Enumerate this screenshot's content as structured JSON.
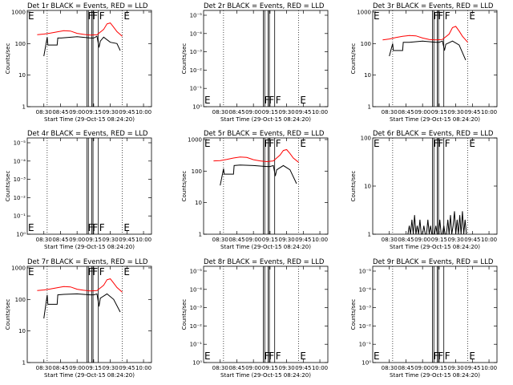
{
  "chart_data": [
    {
      "type": "line",
      "title": "Det 1r BLACK = Events, RED = LLD",
      "scale": "linear-counts",
      "flag_labels": [
        "F",
        "F",
        "F",
        "E"
      ],
      "corner_label": "E",
      "ylabel": "Counts/sec",
      "xlabel": "Start Time (29-Oct-15 08:24:20)",
      "y_ticks": [
        "1",
        "10",
        "100",
        "1000"
      ],
      "x_ticks": [
        "08:30",
        "08:45",
        "09:00",
        "09:15",
        "09:30",
        "09:45",
        "10:00"
      ],
      "series": [
        {
          "color": "#000000",
          "x": [
            8.5,
            8.55,
            8.56,
            8.7,
            8.71,
            8.75,
            8.76,
            9.0,
            9.2,
            9.25,
            9.3,
            9.33,
            9.35,
            9.4,
            9.5,
            9.6,
            9.65
          ],
          "y": [
            40,
            160,
            90,
            90,
            150,
            150,
            150,
            165,
            150,
            150,
            170,
            75,
            120,
            160,
            110,
            100,
            60
          ]
        },
        {
          "color": "#ff0000",
          "x": [
            8.4,
            8.5,
            8.6,
            8.7,
            8.8,
            8.9,
            9.0,
            9.1,
            9.2,
            9.3,
            9.4,
            9.45,
            9.5,
            9.55,
            9.6,
            9.68
          ],
          "y": [
            190,
            200,
            215,
            235,
            255,
            250,
            210,
            195,
            185,
            190,
            280,
            420,
            450,
            330,
            240,
            170
          ]
        }
      ]
    },
    {
      "type": "line",
      "title": "Det 2r BLACK = Events, RED = LLD",
      "scale": "empty",
      "flag_labels": [
        "F",
        "F",
        "F",
        "E"
      ],
      "corner_label": "E",
      "ylabel": "Counts/sec",
      "xlabel": "Start Time (29-Oct-15 08:24:20)",
      "y_ticks": [
        "10⁰",
        "10⁻¹",
        "10⁻²",
        "10⁻³",
        "10⁻⁴",
        "10⁻⁵"
      ],
      "x_ticks": [
        "08:30",
        "08:45",
        "09:00",
        "09:15",
        "09:30",
        "09:45",
        "10:00"
      ],
      "series": []
    },
    {
      "type": "line",
      "title": "Det 3r BLACK = Events, RED = LLD",
      "scale": "linear-counts",
      "flag_labels": [
        "F",
        "F",
        "F",
        "E"
      ],
      "corner_label": "E",
      "ylabel": "Counts/sec",
      "xlabel": "Start Time (29-Oct-15 08:24:20)",
      "y_ticks": [
        "1",
        "10",
        "100",
        "1000"
      ],
      "x_ticks": [
        "08:30",
        "08:45",
        "09:00",
        "09:15",
        "09:30",
        "09:45",
        "10:00"
      ],
      "series": [
        {
          "color": "#000000",
          "x": [
            8.5,
            8.55,
            8.56,
            8.7,
            8.71,
            8.8,
            9.0,
            9.2,
            9.25,
            9.3,
            9.33,
            9.35,
            9.45,
            9.55,
            9.65
          ],
          "y": [
            40,
            100,
            60,
            60,
            110,
            110,
            120,
            110,
            110,
            120,
            60,
            95,
            120,
            90,
            30
          ]
        },
        {
          "color": "#ff0000",
          "x": [
            8.4,
            8.5,
            8.6,
            8.7,
            8.8,
            8.9,
            9.0,
            9.1,
            9.2,
            9.3,
            9.4,
            9.45,
            9.5,
            9.55,
            9.6,
            9.68
          ],
          "y": [
            130,
            140,
            155,
            170,
            180,
            175,
            150,
            135,
            130,
            135,
            200,
            320,
            350,
            250,
            170,
            110
          ]
        }
      ]
    },
    {
      "type": "line",
      "title": "Det 4r BLACK = Events, RED = LLD",
      "scale": "empty",
      "flag_labels": [
        "F",
        "F",
        "F",
        "E"
      ],
      "corner_label": "E",
      "ylabel": "Counts/sec",
      "xlabel": "Start Time (29-Oct-15 08:24:20)",
      "y_ticks": [
        "10⁰",
        "10⁻¹",
        "10⁻²",
        "10⁻³",
        "10⁻⁴",
        "10⁻⁵"
      ],
      "x_ticks": [
        "08:30",
        "08:45",
        "09:00",
        "09:15",
        "09:30",
        "09:45",
        "10:00"
      ],
      "series": []
    },
    {
      "type": "line",
      "title": "Det 5r BLACK = Events, RED = LLD",
      "scale": "linear-counts",
      "flag_labels": [
        "F",
        "F",
        "F",
        "E"
      ],
      "corner_label": "E",
      "ylabel": "Counts/sec",
      "xlabel": "Start Time (29-Oct-15 08:24:20)",
      "y_ticks": [
        "1",
        "10",
        "100",
        "1000"
      ],
      "x_ticks": [
        "08:30",
        "08:45",
        "09:00",
        "09:15",
        "09:30",
        "09:45",
        "10:00"
      ],
      "series": [
        {
          "color": "#000000",
          "x": [
            8.5,
            8.55,
            8.56,
            8.7,
            8.71,
            8.8,
            9.0,
            9.2,
            9.25,
            9.3,
            9.33,
            9.35,
            9.45,
            9.55,
            9.65
          ],
          "y": [
            35,
            120,
            80,
            80,
            150,
            155,
            150,
            140,
            140,
            150,
            70,
            110,
            150,
            110,
            40
          ]
        },
        {
          "color": "#ff0000",
          "x": [
            8.4,
            8.5,
            8.6,
            8.7,
            8.8,
            8.9,
            9.0,
            9.1,
            9.2,
            9.3,
            9.4,
            9.45,
            9.5,
            9.55,
            9.6,
            9.68
          ],
          "y": [
            210,
            215,
            235,
            260,
            280,
            270,
            230,
            210,
            200,
            210,
            320,
            450,
            480,
            360,
            260,
            190
          ]
        }
      ]
    },
    {
      "type": "line",
      "title": "Det 6r BLACK = Events, RED = LLD",
      "scale": "low-counts",
      "flag_labels": [
        "F",
        "F",
        "F",
        "E"
      ],
      "corner_label": "E",
      "ylabel": "Counts/sec",
      "xlabel": "Start Time (29-Oct-15 08:24:20)",
      "y_ticks": [
        "1",
        "10",
        "100"
      ],
      "x_ticks": [
        "08:30",
        "08:45",
        "09:00",
        "09:15",
        "09:30",
        "09:45",
        "10:00"
      ],
      "series": [
        {
          "color": "#000000",
          "x": [
            8.78,
            8.8,
            8.82,
            8.84,
            8.86,
            8.88,
            8.9,
            8.92,
            8.94,
            8.96,
            8.98,
            9.0,
            9.02,
            9.04,
            9.06,
            9.08,
            9.1,
            9.12,
            9.14,
            9.16,
            9.18,
            9.2,
            9.22,
            9.24,
            9.26,
            9.28,
            9.3,
            9.32,
            9.34,
            9.36,
            9.38,
            9.4,
            9.42,
            9.44,
            9.46,
            9.48,
            9.5,
            9.52,
            9.54,
            9.56,
            9.58,
            9.6,
            9.62,
            9.64,
            9.66
          ],
          "y": [
            1,
            1.5,
            1,
            2,
            1,
            2.5,
            1,
            1.5,
            1,
            2,
            1,
            1,
            1.5,
            1,
            1,
            2,
            1,
            1.5,
            1,
            1,
            1,
            1.5,
            1,
            1,
            2,
            1,
            1,
            1.5,
            1,
            1,
            2,
            1,
            2.5,
            1,
            1.5,
            3,
            1,
            2,
            1,
            2.5,
            1,
            3,
            1,
            2,
            1
          ]
        }
      ]
    },
    {
      "type": "line",
      "title": "Det 7r BLACK = Events, RED = LLD",
      "scale": "linear-counts",
      "flag_labels": [
        "F",
        "F",
        "F",
        "E"
      ],
      "corner_label": "E",
      "ylabel": "Counts/sec",
      "xlabel": "Start Time (29-Oct-15 08:24:20)",
      "y_ticks": [
        "1",
        "10",
        "100",
        "1000"
      ],
      "x_ticks": [
        "08:30",
        "08:45",
        "09:00",
        "09:15",
        "09:30",
        "09:45",
        "10:00"
      ],
      "series": [
        {
          "color": "#000000",
          "x": [
            8.5,
            8.55,
            8.56,
            8.7,
            8.71,
            8.8,
            9.0,
            9.2,
            9.25,
            9.3,
            9.33,
            9.35,
            9.45,
            9.55,
            9.65
          ],
          "y": [
            25,
            140,
            70,
            70,
            140,
            145,
            150,
            140,
            140,
            150,
            60,
            110,
            150,
            100,
            40
          ]
        },
        {
          "color": "#ff0000",
          "x": [
            8.4,
            8.5,
            8.6,
            8.7,
            8.8,
            8.9,
            9.0,
            9.1,
            9.2,
            9.3,
            9.4,
            9.45,
            9.5,
            9.55,
            9.6,
            9.68
          ],
          "y": [
            190,
            200,
            215,
            235,
            255,
            250,
            210,
            195,
            185,
            190,
            280,
            420,
            450,
            330,
            240,
            170
          ]
        }
      ]
    },
    {
      "type": "line",
      "title": "Det 8r BLACK = Events, RED = LLD",
      "scale": "empty",
      "flag_labels": [
        "F",
        "F",
        "F",
        "E"
      ],
      "corner_label": "E",
      "ylabel": "Counts/sec",
      "xlabel": "Start Time (29-Oct-15 08:24:20)",
      "y_ticks": [
        "10⁰",
        "10⁻¹",
        "10⁻²",
        "10⁻³",
        "10⁻⁴",
        "10⁻⁵"
      ],
      "x_ticks": [
        "08:30",
        "08:45",
        "09:00",
        "09:15",
        "09:30",
        "09:45",
        "10:00"
      ],
      "series": []
    },
    {
      "type": "line",
      "title": "Det 9r BLACK = Events, RED = LLD",
      "scale": "empty",
      "flag_labels": [
        "F",
        "F",
        "F",
        "E"
      ],
      "corner_label": "E",
      "ylabel": "Counts/sec",
      "xlabel": "Start Time (29-Oct-15 08:24:20)",
      "y_ticks": [
        "10⁰",
        "10⁻¹",
        "10⁻²",
        "10⁻³",
        "10⁻⁴",
        "10⁻⁵"
      ],
      "x_ticks": [
        "08:30",
        "08:45",
        "09:00",
        "09:15",
        "09:30",
        "09:45",
        "10:00"
      ],
      "series": []
    }
  ]
}
